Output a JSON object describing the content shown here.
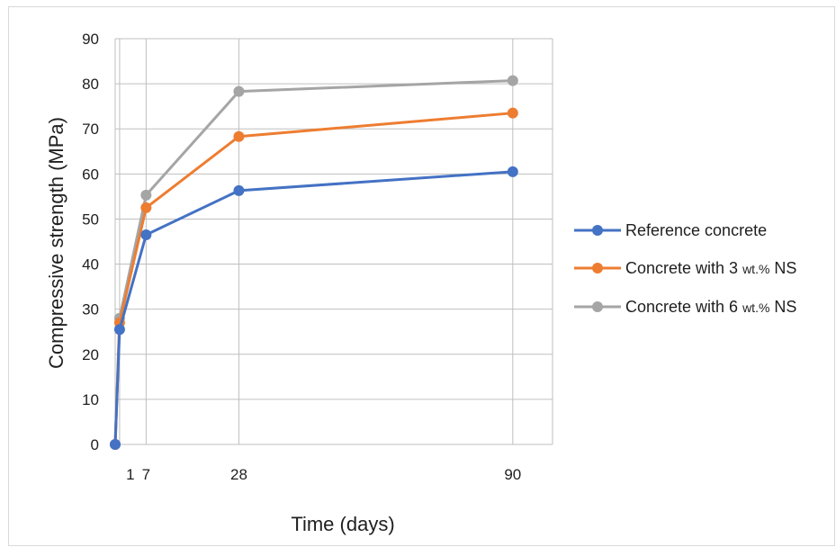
{
  "chart_data": {
    "type": "line",
    "title": "",
    "xlabel": "Time (days)",
    "ylabel": "Compressive strength (MPa)",
    "x": [
      0,
      1,
      7,
      28,
      90
    ],
    "x_tick_labels": [
      "1",
      "7",
      "28",
      "90"
    ],
    "x_tick_values": [
      1,
      7,
      28,
      90
    ],
    "ylim": [
      0,
      90
    ],
    "y_ticks": [
      0,
      10,
      20,
      30,
      40,
      50,
      60,
      70,
      80,
      90
    ],
    "grid": true,
    "legend_position": "right",
    "series": [
      {
        "name": "Reference concrete",
        "color": "#4472C4",
        "values": [
          0,
          25.5,
          46.5,
          56.3,
          60.5
        ]
      },
      {
        "name": "Concrete with 3 wt.% NS",
        "color": "#ED7D31",
        "values": [
          0,
          27,
          52.5,
          68.3,
          73.5
        ]
      },
      {
        "name": "Concrete with 6 wt.% NS",
        "color": "#A5A5A5",
        "values": [
          0,
          28,
          55.3,
          78.3,
          80.7
        ]
      }
    ],
    "legend": [
      {
        "main": "Reference concrete",
        "small": ""
      },
      {
        "main": "Concrete with 3 ",
        "small": "wt.%",
        "tail": " NS"
      },
      {
        "main": "Concrete with 6 ",
        "small": "wt.%",
        "tail": " NS"
      }
    ]
  }
}
